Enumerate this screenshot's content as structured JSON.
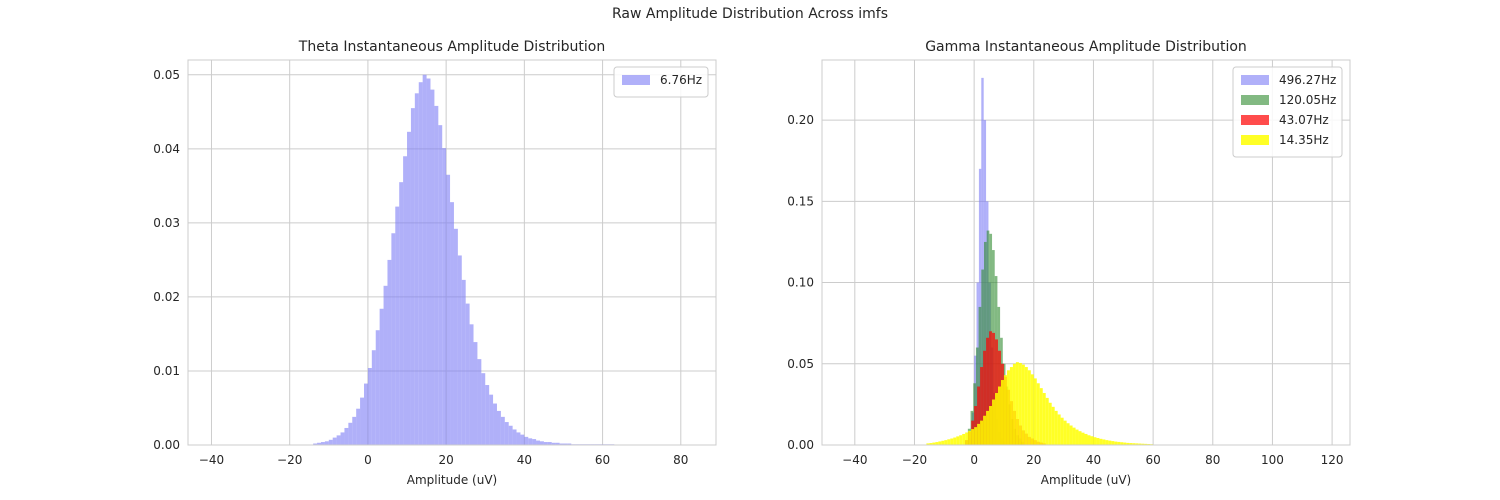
{
  "figure": {
    "suptitle": "Raw Amplitude Distribution Across imfs"
  },
  "chart_data": [
    {
      "type": "histogram",
      "title": "Theta Instantaneous Amplitude Distribution",
      "xlabel": "Amplitude (uV)",
      "ylabel": "",
      "xlim": [
        -46,
        89
      ],
      "ylim": [
        0,
        0.052
      ],
      "xticks": [
        -40,
        -20,
        0,
        20,
        40,
        60,
        80
      ],
      "yticks": [
        0.0,
        0.01,
        0.02,
        0.03,
        0.04,
        0.05
      ],
      "ytick_labels": [
        "0.00",
        "0.01",
        "0.02",
        "0.03",
        "0.04",
        "0.05"
      ],
      "grid": true,
      "legend_position": "top-right",
      "series": [
        {
          "name": "6.76Hz",
          "color": "#7b7bf5",
          "alpha": 0.6,
          "bin_start": -14,
          "bin_width": 1.0,
          "values": [
            0.0002,
            0.0003,
            0.0004,
            0.0005,
            0.0007,
            0.001,
            0.0013,
            0.0017,
            0.0023,
            0.003,
            0.0038,
            0.0049,
            0.0064,
            0.0083,
            0.0104,
            0.0128,
            0.0155,
            0.0184,
            0.0215,
            0.025,
            0.0286,
            0.0322,
            0.0355,
            0.039,
            0.0423,
            0.0455,
            0.0475,
            0.049,
            0.05,
            0.0495,
            0.048,
            0.0458,
            0.0432,
            0.0401,
            0.0365,
            0.0328,
            0.0292,
            0.0256,
            0.0223,
            0.0191,
            0.0163,
            0.0139,
            0.0116,
            0.0097,
            0.0081,
            0.0068,
            0.0056,
            0.0046,
            0.0038,
            0.0031,
            0.0026,
            0.0021,
            0.0017,
            0.0014,
            0.0011,
            0.0009,
            0.0008,
            0.0006,
            0.0005,
            0.0004,
            0.0004,
            0.0003,
            0.0003,
            0.0002,
            0.0002,
            0.0002,
            0.0001,
            0.0001,
            0.0001,
            0.0001,
            0.0001,
            0.0001,
            0.0001,
            0.0001,
            0.0001,
            0.0001,
            0.0001
          ]
        }
      ]
    },
    {
      "type": "histogram",
      "title": "Gamma Instantaneous Amplitude Distribution",
      "xlabel": "Amplitude (uV)",
      "ylabel": "",
      "xlim": [
        -51,
        126
      ],
      "ylim": [
        0,
        0.237
      ],
      "xticks": [
        -40,
        -20,
        0,
        20,
        40,
        60,
        80,
        100,
        120
      ],
      "yticks": [
        0.0,
        0.05,
        0.1,
        0.15,
        0.2
      ],
      "ytick_labels": [
        "0.00",
        "0.05",
        "0.10",
        "0.15",
        "0.20"
      ],
      "grid": true,
      "legend_position": "top-right",
      "series": [
        {
          "name": "496.27Hz",
          "color": "#7b7bf5",
          "alpha": 0.6,
          "bin_start": -1.6,
          "bin_width": 0.8,
          "values": [
            0.004,
            0.02,
            0.055,
            0.1,
            0.17,
            0.226,
            0.2,
            0.15,
            0.1,
            0.06,
            0.032,
            0.016,
            0.008,
            0.004,
            0.002
          ]
        },
        {
          "name": "120.05Hz",
          "color": "#2e8b2e",
          "alpha": 0.6,
          "bin_start": -3,
          "bin_width": 0.9,
          "values": [
            0.003,
            0.01,
            0.021,
            0.038,
            0.06,
            0.085,
            0.108,
            0.125,
            0.132,
            0.13,
            0.12,
            0.104,
            0.085,
            0.066,
            0.05,
            0.036,
            0.025,
            0.016,
            0.01,
            0.006,
            0.004,
            0.002
          ]
        },
        {
          "name": "43.07Hz",
          "color": "#ff0000",
          "alpha": 0.7,
          "bin_start": -3,
          "bin_width": 1.0,
          "values": [
            0.003,
            0.008,
            0.015,
            0.024,
            0.036,
            0.048,
            0.058,
            0.066,
            0.07,
            0.069,
            0.065,
            0.058,
            0.05,
            0.042,
            0.034,
            0.027,
            0.021,
            0.016,
            0.012,
            0.009,
            0.007,
            0.005,
            0.004,
            0.003,
            0.002,
            0.0015,
            0.001
          ]
        },
        {
          "name": "14.35Hz",
          "color": "#ffff00",
          "alpha": 0.85,
          "bin_start": -16,
          "bin_width": 1.0,
          "values": [
            0.001,
            0.0012,
            0.0015,
            0.0018,
            0.0022,
            0.0026,
            0.003,
            0.0035,
            0.004,
            0.0046,
            0.0053,
            0.006,
            0.0068,
            0.0077,
            0.0087,
            0.0098,
            0.011,
            0.013,
            0.015,
            0.018,
            0.021,
            0.024,
            0.028,
            0.032,
            0.036,
            0.04,
            0.043,
            0.046,
            0.048,
            0.05,
            0.051,
            0.0505,
            0.0495,
            0.048,
            0.046,
            0.0435,
            0.041,
            0.038,
            0.035,
            0.032,
            0.029,
            0.026,
            0.0235,
            0.021,
            0.0188,
            0.0168,
            0.015,
            0.0134,
            0.012,
            0.0107,
            0.0095,
            0.0085,
            0.0076,
            0.0068,
            0.006,
            0.0054,
            0.0048,
            0.0043,
            0.0038,
            0.0034,
            0.003,
            0.0027,
            0.0024,
            0.0021,
            0.0019,
            0.0017,
            0.0015,
            0.0013,
            0.0012,
            0.0011,
            0.001,
            0.0009,
            0.0008,
            0.0007,
            0.0006,
            0.0005
          ]
        }
      ]
    }
  ]
}
